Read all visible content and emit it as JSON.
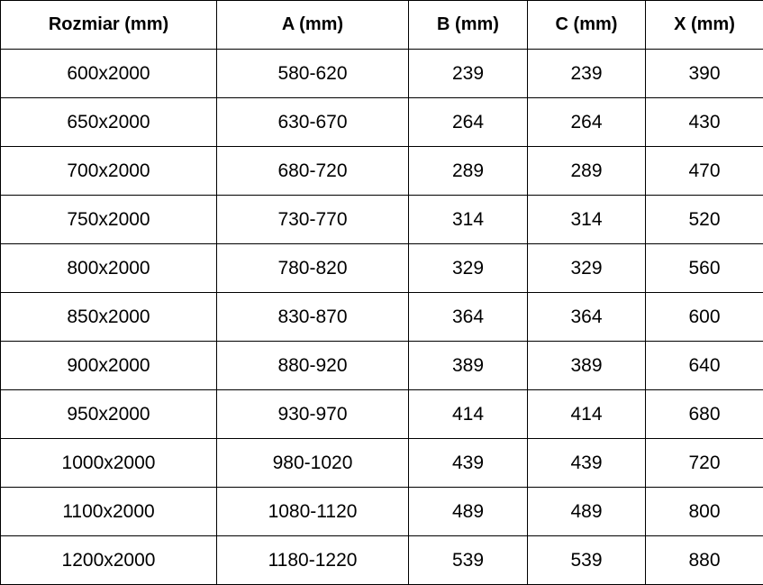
{
  "table": {
    "headers": [
      "Rozmiar (mm)",
      "A (mm)",
      "B (mm)",
      "C (mm)",
      "X (mm)"
    ],
    "rows": [
      [
        "600x2000",
        "580-620",
        "239",
        "239",
        "390"
      ],
      [
        "650x2000",
        "630-670",
        "264",
        "264",
        "430"
      ],
      [
        "700x2000",
        "680-720",
        "289",
        "289",
        "470"
      ],
      [
        "750x2000",
        "730-770",
        "314",
        "314",
        "520"
      ],
      [
        "800x2000",
        "780-820",
        "329",
        "329",
        "560"
      ],
      [
        "850x2000",
        "830-870",
        "364",
        "364",
        "600"
      ],
      [
        "900x2000",
        "880-920",
        "389",
        "389",
        "640"
      ],
      [
        "950x2000",
        "930-970",
        "414",
        "414",
        "680"
      ],
      [
        "1000x2000",
        "980-1020",
        "439",
        "439",
        "720"
      ],
      [
        "1100x2000",
        "1080-1120",
        "489",
        "489",
        "800"
      ],
      [
        "1200x2000",
        "1180-1220",
        "539",
        "539",
        "880"
      ]
    ]
  }
}
